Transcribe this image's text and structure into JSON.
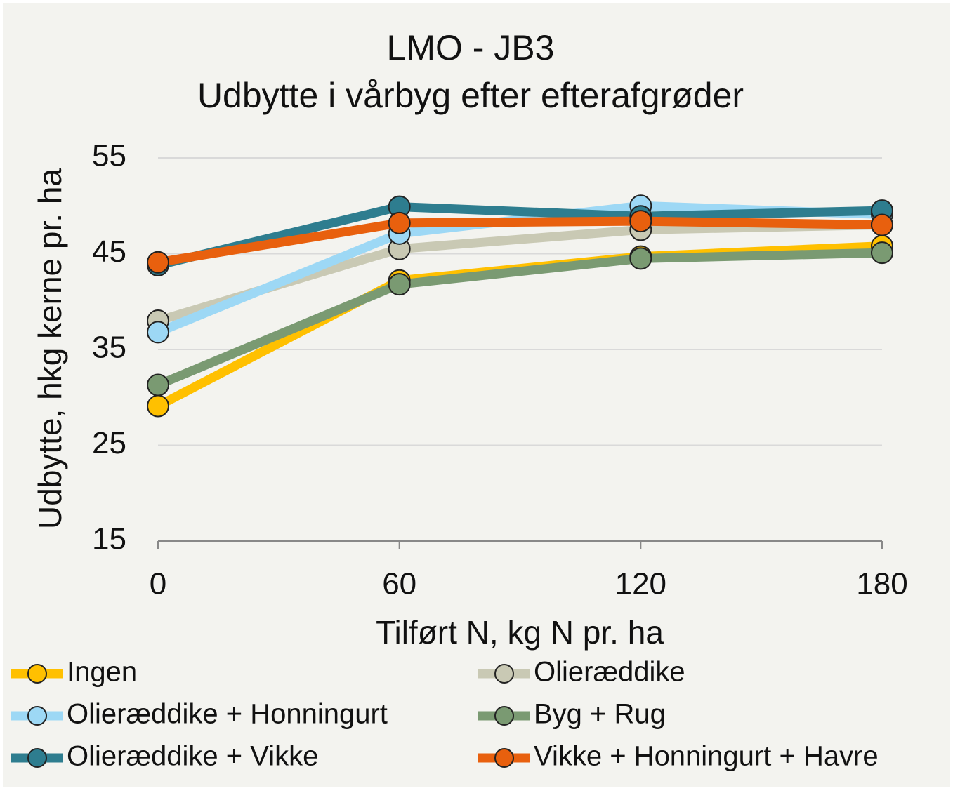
{
  "chart_data": {
    "type": "line",
    "title": "LMO - JB3",
    "subtitle": "Udbytte i vårbyg efter efterafgrøder",
    "x_label": "Tilført N, kg N pr. ha",
    "y_label": "Udbytte,  hkg kerne pr. ha",
    "x": [
      0,
      60,
      120,
      180
    ],
    "xlim": [
      0,
      180
    ],
    "xticks": [
      0,
      60,
      120,
      180
    ],
    "ylim": [
      15,
      55
    ],
    "yticks": [
      15,
      25,
      35,
      45,
      55
    ],
    "grid": true,
    "legend": "bottom",
    "series": [
      {
        "name": "Ingen",
        "color": "#ffc000",
        "values": [
          29.1,
          42.2,
          44.7,
          45.8
        ]
      },
      {
        "name": "Olieræddike",
        "color": "#c9c9b4",
        "values": [
          38.0,
          45.5,
          47.5,
          48.0
        ]
      },
      {
        "name": "Olieræddike + Honningurt",
        "color": "#9dd8f5",
        "values": [
          36.8,
          47.1,
          50.0,
          49.1
        ]
      },
      {
        "name": "Byg + Rug",
        "color": "#7a9a72",
        "values": [
          31.3,
          41.8,
          44.5,
          45.1
        ]
      },
      {
        "name": "Olieræddike + Vikke",
        "color": "#2e7d8f",
        "values": [
          43.8,
          49.9,
          48.9,
          49.5
        ]
      },
      {
        "name": "Vikke + Honningurt + Havre",
        "color": "#e8600e",
        "values": [
          44.1,
          48.2,
          48.4,
          48.0
        ]
      }
    ]
  }
}
